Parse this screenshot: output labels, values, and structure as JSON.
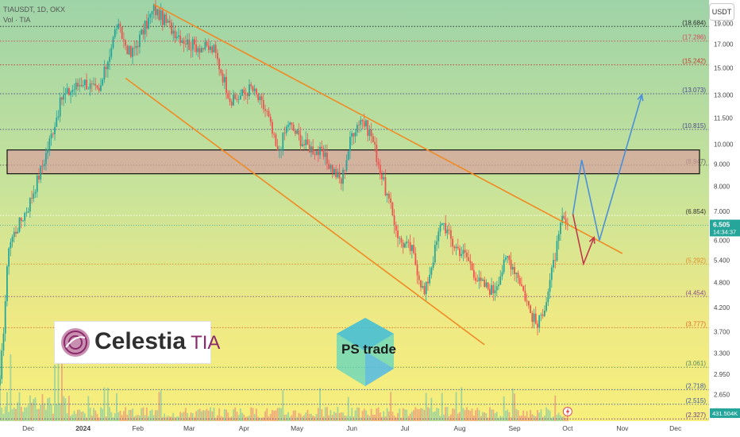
{
  "header": {
    "symbol_line": "TIAUSDT, 1D, OKX",
    "volume_line": "Vol · TIA"
  },
  "axis": {
    "unit_label": "USDT",
    "price_ticks": [
      "19.000",
      "17.000",
      "15.000",
      "13.000",
      "11.500",
      "10.000",
      "9.000",
      "8.000",
      "7.000",
      "6.000",
      "5.400",
      "4.800",
      "4.200",
      "3.700",
      "3.300",
      "2.950",
      "2.650"
    ],
    "time_ticks": [
      "Dec",
      "2024",
      "Feb",
      "Mar",
      "Apr",
      "May",
      "Jun",
      "Jul",
      "Aug",
      "Sep",
      "Oct",
      "Nov",
      "Dec"
    ]
  },
  "levels": [
    {
      "label": "(18.684)",
      "value": 18.684,
      "color": "#2b2b2b"
    },
    {
      "label": "(17.286)",
      "value": 17.286,
      "color": "#d6485b"
    },
    {
      "label": "(15.242)",
      "value": 15.242,
      "color": "#c0392b"
    },
    {
      "label": "(13.073)",
      "value": 13.073,
      "color": "#4a4a8a"
    },
    {
      "label": "(10.815)",
      "value": 10.815,
      "color": "#4a4a8a"
    },
    {
      "label": "(8.947)",
      "value": 8.947,
      "color": "#5a5a5a"
    },
    {
      "label": "(6.854)",
      "value": 6.854,
      "color": "#ffffff"
    },
    {
      "label": "(5.292)",
      "value": 5.292,
      "color": "#e08a2a"
    },
    {
      "label": "(4.454)",
      "value": 4.454,
      "color": "#8a4a8a"
    },
    {
      "label": "(3.777)",
      "value": 3.777,
      "color": "#e06a2a"
    },
    {
      "label": "(3.061)",
      "value": 3.061,
      "color": "#5a8a5a"
    },
    {
      "label": "(2.718)",
      "value": 2.718,
      "color": "#3a5aa0"
    },
    {
      "label": "(2.515)",
      "value": 2.515,
      "color": "#3a5aa0"
    },
    {
      "label": "(2.327)",
      "value": 2.327,
      "color": "#6a3a8a"
    }
  ],
  "current": {
    "price_label": "6.505",
    "countdown": "14:34:37",
    "price": 6.505
  },
  "volume_label": "431.504K",
  "logo": {
    "name": "Celestia",
    "suffix": "TIA"
  },
  "watermark": "PS trade",
  "chart_data": {
    "type": "candlestick",
    "y_scale": "log",
    "ylim": [
      2.3,
      21.5
    ],
    "x_range": [
      "2023-11-15",
      "2024-12-20"
    ],
    "resistance_zone": [
      8.55,
      9.7
    ],
    "approx_closes": [
      {
        "date": "2023-11-15",
        "close": 2.8
      },
      {
        "date": "2023-11-20",
        "close": 5.9
      },
      {
        "date": "2023-12-01",
        "close": 7.2
      },
      {
        "date": "2023-12-10",
        "close": 9.2
      },
      {
        "date": "2023-12-20",
        "close": 12.8
      },
      {
        "date": "2024-01-01",
        "close": 14.0
      },
      {
        "date": "2024-01-10",
        "close": 13.1
      },
      {
        "date": "2024-01-20",
        "close": 18.8
      },
      {
        "date": "2024-01-28",
        "close": 16.0
      },
      {
        "date": "2024-02-10",
        "close": 20.5
      },
      {
        "date": "2024-02-20",
        "close": 18.5
      },
      {
        "date": "2024-03-01",
        "close": 17.0
      },
      {
        "date": "2024-03-15",
        "close": 16.5
      },
      {
        "date": "2024-03-25",
        "close": 12.5
      },
      {
        "date": "2024-04-05",
        "close": 13.5
      },
      {
        "date": "2024-04-14",
        "close": 11.8
      },
      {
        "date": "2024-04-20",
        "close": 9.5
      },
      {
        "date": "2024-04-26",
        "close": 11.2
      },
      {
        "date": "2024-05-05",
        "close": 10.0
      },
      {
        "date": "2024-05-15",
        "close": 9.5
      },
      {
        "date": "2024-05-26",
        "close": 8.2
      },
      {
        "date": "2024-06-01",
        "close": 10.6
      },
      {
        "date": "2024-06-06",
        "close": 11.5
      },
      {
        "date": "2024-06-12",
        "close": 10.5
      },
      {
        "date": "2024-06-18",
        "close": 8.4
      },
      {
        "date": "2024-06-28",
        "close": 6.0
      },
      {
        "date": "2024-07-05",
        "close": 5.7
      },
      {
        "date": "2024-07-12",
        "close": 4.5
      },
      {
        "date": "2024-07-22",
        "close": 6.7
      },
      {
        "date": "2024-07-28",
        "close": 5.9
      },
      {
        "date": "2024-08-05",
        "close": 5.5
      },
      {
        "date": "2024-08-12",
        "close": 4.8
      },
      {
        "date": "2024-08-20",
        "close": 4.6
      },
      {
        "date": "2024-08-28",
        "close": 5.5
      },
      {
        "date": "2024-09-03",
        "close": 5.0
      },
      {
        "date": "2024-09-10",
        "close": 4.1
      },
      {
        "date": "2024-09-14",
        "close": 3.8
      },
      {
        "date": "2024-09-19",
        "close": 4.4
      },
      {
        "date": "2024-09-25",
        "close": 5.8
      },
      {
        "date": "2024-09-28",
        "close": 6.7
      },
      {
        "date": "2024-10-01",
        "close": 6.505
      }
    ],
    "trendlines": [
      {
        "name": "upper",
        "points": [
          {
            "date": "2024-02-10",
            "price": 21.0
          },
          {
            "date": "2024-11-01",
            "price": 5.6
          }
        ]
      },
      {
        "name": "lower",
        "points": [
          {
            "date": "2024-01-25",
            "price": 14.2
          },
          {
            "date": "2024-08-15",
            "price": 3.45
          }
        ]
      }
    ],
    "projections": [
      {
        "name": "bullish",
        "color": "#4a90d9",
        "points": [
          {
            "date": "2024-10-04",
            "price": 6.9
          },
          {
            "date": "2024-10-09",
            "price": 9.2
          },
          {
            "date": "2024-10-19",
            "price": 6.0
          },
          {
            "date": "2024-11-12",
            "price": 13.0
          }
        ]
      },
      {
        "name": "bearish",
        "color": "#c0394a",
        "points": [
          {
            "date": "2024-10-04",
            "price": 6.9
          },
          {
            "date": "2024-10-10",
            "price": 5.3
          },
          {
            "date": "2024-10-16",
            "price": 6.1
          }
        ]
      }
    ]
  },
  "colors": {
    "up": "#26a69a",
    "down": "#ef5350",
    "trendline": "#f08a24",
    "zone_fill": "#d9a0a0",
    "zone_border": "#111111"
  }
}
